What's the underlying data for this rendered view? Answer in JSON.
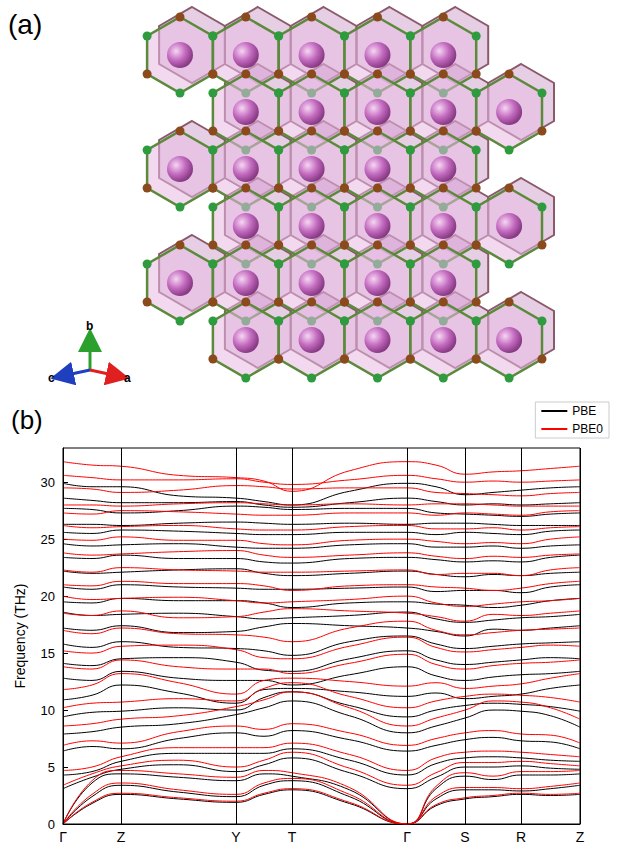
{
  "figure_a": {
    "label": "(a)",
    "axes": [
      {
        "label": "b",
        "color": "#2ca02c"
      },
      {
        "label": "c",
        "color": "#1f3fbf"
      },
      {
        "label": "a",
        "color": "#e02020"
      }
    ]
  },
  "chart_data": {
    "type": "line",
    "title": "(b)",
    "ylabel": "Frequency (THz)",
    "x": [
      0,
      0.29,
      0.58,
      1.155,
      1.73,
      2.01,
      2.29,
      2.865,
      3.44,
      3.73,
      4.02,
      4.3,
      4.58,
      4.875,
      5.17
    ],
    "xlim": [
      0,
      5.17
    ],
    "xticks": [
      {
        "value": 0,
        "label": "Γ"
      },
      {
        "value": 0.58,
        "label": "Z"
      },
      {
        "value": 1.73,
        "label": "Y"
      },
      {
        "value": 2.29,
        "label": "T"
      },
      {
        "value": 3.44,
        "label": "Γ"
      },
      {
        "value": 4.02,
        "label": "S"
      },
      {
        "value": 4.58,
        "label": "R"
      },
      {
        "value": 5.17,
        "label": "Z"
      }
    ],
    "ylim": [
      0,
      33
    ],
    "yticks": [
      0,
      5,
      10,
      15,
      20,
      25,
      30
    ],
    "grid": true,
    "legend": "top-right",
    "series": [
      {
        "name": "PBE",
        "color": "#000000",
        "values": [
          [
            0,
            1.8,
            2.6,
            2.2,
            1.9,
            2.6,
            3.0,
            1.8,
            0,
            1.6,
            2.2,
            2.4,
            2.6,
            2.5,
            2.6
          ],
          [
            0,
            2.4,
            3.4,
            2.8,
            2.4,
            3.4,
            3.8,
            2.4,
            0,
            2.2,
            3.0,
            3.0,
            2.9,
            3.1,
            3.4
          ],
          [
            0,
            3.6,
            4.4,
            4.1,
            3.8,
            4.4,
            4.2,
            3.0,
            0,
            3.1,
            4.2,
            3.9,
            4.3,
            4.3,
            4.4
          ],
          [
            3.1,
            4.1,
            4.8,
            5.2,
            4.6,
            5.2,
            5.8,
            4.5,
            3.1,
            4.1,
            5.0,
            5.0,
            5.1,
            4.9,
            4.8
          ],
          [
            4.3,
            4.6,
            5.5,
            6.2,
            6.2,
            6.2,
            6.6,
            5.6,
            4.3,
            5.3,
            5.8,
            5.9,
            5.8,
            5.6,
            5.5
          ],
          [
            6.4,
            6.8,
            6.6,
            7.5,
            8.0,
            7.7,
            8.2,
            7.4,
            6.4,
            6.9,
            7.4,
            7.6,
            7.3,
            7.2,
            6.6
          ],
          [
            7.9,
            8.1,
            8.5,
            8.8,
            9.6,
            10.2,
            10.8,
            9.5,
            8.0,
            8.6,
            9.3,
            10.0,
            9.9,
            9.5,
            8.5
          ],
          [
            9.4,
            9.8,
            9.9,
            10.2,
            10.0,
            11.1,
            11.6,
            10.4,
            9.4,
            10.0,
            10.4,
            10.6,
            10.5,
            10.3,
            9.9
          ],
          [
            10.9,
            11.3,
            12.2,
            11.5,
            10.6,
            11.8,
            11.9,
            11.6,
            11.2,
            11.5,
            11.0,
            11.2,
            11.4,
            11.9,
            12.2
          ],
          [
            12.8,
            12.6,
            13.4,
            12.8,
            12.6,
            12.6,
            12.2,
            13.1,
            13.8,
            13.0,
            12.6,
            12.9,
            13.1,
            13.2,
            13.4
          ],
          [
            14.1,
            13.9,
            14.5,
            14.6,
            14.2,
            13.5,
            13.4,
            14.5,
            15.2,
            14.4,
            14.0,
            14.2,
            14.4,
            14.6,
            14.5
          ],
          [
            15.8,
            15.5,
            16.0,
            15.5,
            15.4,
            15.2,
            14.8,
            16.0,
            16.5,
            15.8,
            15.4,
            15.6,
            15.8,
            15.9,
            16.0
          ],
          [
            17.2,
            17.0,
            17.4,
            16.8,
            16.9,
            17.3,
            17.6,
            17.4,
            17.2,
            16.9,
            16.5,
            17.1,
            17.0,
            17.2,
            17.4
          ],
          [
            18.6,
            18.3,
            18.4,
            18.5,
            18.2,
            18.0,
            18.1,
            18.3,
            18.6,
            18.0,
            17.7,
            17.9,
            18.1,
            18.2,
            18.4
          ],
          [
            19.5,
            19.4,
            19.8,
            19.6,
            19.6,
            19.4,
            19.0,
            19.4,
            19.5,
            19.3,
            19.2,
            19.0,
            19.2,
            19.6,
            19.8
          ],
          [
            20.8,
            20.6,
            21.0,
            20.8,
            20.7,
            20.6,
            20.6,
            20.7,
            20.8,
            20.4,
            20.5,
            20.5,
            20.3,
            20.8,
            21.0
          ],
          [
            22.2,
            22.0,
            22.1,
            22.3,
            22.4,
            22.0,
            21.8,
            22.0,
            22.2,
            21.9,
            21.7,
            21.9,
            21.8,
            22.0,
            22.1
          ],
          [
            23.4,
            23.3,
            23.6,
            23.3,
            23.3,
            23.0,
            22.9,
            23.3,
            23.4,
            23.2,
            23.0,
            23.1,
            23.0,
            23.4,
            23.6
          ],
          [
            24.6,
            24.4,
            24.5,
            24.6,
            24.3,
            24.2,
            24.2,
            24.5,
            24.6,
            24.3,
            24.3,
            24.4,
            24.2,
            24.4,
            24.5
          ],
          [
            25.6,
            25.5,
            25.8,
            25.7,
            25.5,
            25.4,
            25.4,
            25.6,
            25.6,
            25.4,
            25.6,
            25.5,
            25.4,
            25.7,
            25.8
          ],
          [
            26.3,
            26.3,
            26.2,
            26.4,
            26.5,
            26.4,
            26.3,
            26.4,
            26.3,
            26.4,
            26.4,
            26.3,
            26.2,
            26.2,
            26.2
          ],
          [
            27.7,
            27.6,
            27.3,
            27.5,
            27.9,
            27.8,
            27.6,
            27.7,
            27.7,
            27.3,
            27.2,
            27.1,
            27.0,
            27.2,
            27.3
          ],
          [
            28.6,
            28.4,
            28.2,
            28.2,
            28.3,
            28.0,
            27.8,
            28.2,
            28.6,
            28.3,
            28.0,
            28.1,
            28.0,
            28.1,
            28.2
          ],
          [
            29.9,
            29.6,
            29.6,
            28.8,
            28.6,
            28.3,
            28.0,
            29.2,
            29.9,
            29.6,
            28.9,
            29.1,
            29.3,
            29.5,
            29.6
          ]
        ]
      },
      {
        "name": "PBE0",
        "color": "#ff0000",
        "values": [
          [
            0,
            1.9,
            2.7,
            2.3,
            2.0,
            2.7,
            3.1,
            1.9,
            0,
            1.7,
            2.3,
            2.5,
            2.7,
            2.6,
            2.7
          ],
          [
            0,
            2.6,
            3.6,
            3.0,
            2.6,
            3.6,
            4.0,
            2.6,
            0,
            2.4,
            3.2,
            3.2,
            3.1,
            3.3,
            3.6
          ],
          [
            0,
            3.8,
            4.7,
            4.4,
            4.1,
            4.7,
            4.5,
            3.2,
            0,
            3.3,
            4.5,
            4.2,
            4.6,
            4.6,
            4.7
          ],
          [
            3.4,
            4.4,
            5.1,
            5.6,
            5.0,
            5.6,
            6.3,
            4.9,
            3.4,
            4.5,
            5.4,
            5.4,
            5.5,
            5.3,
            5.1
          ],
          [
            4.7,
            5.0,
            5.9,
            6.7,
            6.7,
            6.7,
            7.1,
            6.1,
            4.7,
            5.8,
            6.3,
            6.4,
            6.3,
            6.1,
            5.9
          ],
          [
            6.9,
            7.3,
            7.1,
            8.1,
            8.6,
            8.3,
            8.8,
            8.0,
            6.9,
            7.5,
            8.0,
            8.2,
            7.9,
            7.8,
            7.1
          ],
          [
            8.6,
            8.8,
            9.2,
            9.5,
            10.3,
            10.9,
            11.6,
            10.2,
            8.6,
            9.3,
            10.0,
            10.8,
            10.7,
            10.2,
            9.2
          ],
          [
            10.2,
            10.6,
            10.7,
            11.0,
            10.8,
            11.9,
            12.4,
            11.2,
            10.2,
            10.8,
            11.2,
            11.4,
            11.3,
            11.1,
            10.7
          ],
          [
            11.8,
            12.2,
            13.2,
            12.4,
            11.4,
            12.6,
            12.8,
            12.5,
            12.1,
            12.4,
            11.9,
            12.1,
            12.3,
            12.8,
            13.2
          ],
          [
            13.8,
            13.6,
            14.4,
            13.8,
            13.6,
            13.6,
            13.2,
            14.1,
            14.9,
            14.0,
            13.6,
            13.9,
            14.1,
            14.2,
            14.4
          ],
          [
            15.2,
            15.0,
            15.6,
            15.7,
            15.3,
            14.6,
            14.5,
            15.6,
            16.4,
            15.5,
            15.1,
            15.3,
            15.5,
            15.7,
            15.6
          ],
          [
            17.0,
            16.7,
            17.2,
            16.7,
            16.6,
            16.4,
            16.0,
            17.2,
            17.8,
            17.0,
            16.6,
            16.8,
            17.0,
            17.1,
            17.2
          ],
          [
            18.5,
            18.3,
            18.7,
            18.1,
            18.2,
            18.6,
            18.9,
            18.7,
            18.5,
            18.2,
            17.8,
            18.4,
            18.3,
            18.5,
            18.7
          ],
          [
            20.0,
            19.7,
            19.8,
            19.9,
            19.6,
            19.4,
            19.5,
            19.7,
            20.0,
            19.4,
            19.1,
            19.3,
            19.5,
            19.6,
            19.8
          ],
          [
            21.0,
            20.9,
            21.3,
            21.1,
            21.1,
            20.9,
            20.5,
            20.9,
            21.0,
            20.8,
            20.7,
            20.5,
            20.7,
            21.1,
            21.3
          ],
          [
            22.3,
            22.1,
            22.5,
            22.3,
            22.2,
            22.1,
            22.1,
            22.2,
            22.3,
            21.9,
            22.0,
            22.0,
            21.8,
            22.3,
            22.5
          ],
          [
            23.8,
            23.6,
            23.7,
            23.9,
            24.0,
            23.6,
            23.4,
            23.6,
            23.8,
            23.5,
            23.3,
            23.5,
            23.4,
            23.6,
            23.7
          ],
          [
            25.0,
            24.9,
            25.2,
            24.9,
            24.9,
            24.6,
            24.5,
            24.9,
            25.0,
            24.8,
            24.6,
            24.7,
            24.6,
            25.0,
            25.2
          ],
          [
            26.2,
            26.0,
            26.1,
            26.2,
            25.9,
            25.8,
            25.8,
            26.1,
            26.2,
            25.9,
            25.9,
            26.0,
            25.8,
            26.0,
            26.1
          ],
          [
            27.3,
            27.2,
            27.5,
            27.4,
            27.2,
            27.1,
            27.1,
            27.3,
            27.3,
            27.1,
            27.3,
            27.2,
            27.1,
            27.4,
            27.5
          ],
          [
            28.0,
            28.0,
            27.9,
            28.1,
            28.2,
            28.1,
            28.0,
            28.1,
            28.0,
            28.1,
            28.1,
            28.0,
            27.9,
            27.9,
            27.9
          ],
          [
            29.5,
            29.4,
            29.1,
            29.3,
            29.7,
            29.6,
            29.4,
            29.5,
            29.5,
            29.1,
            29.0,
            28.9,
            28.8,
            29.0,
            29.1
          ],
          [
            30.6,
            30.4,
            30.2,
            30.2,
            30.3,
            30.0,
            29.8,
            30.2,
            30.6,
            30.3,
            30.0,
            30.1,
            30.0,
            30.1,
            30.2
          ],
          [
            31.8,
            31.5,
            31.4,
            30.6,
            30.4,
            30.1,
            29.2,
            31.0,
            31.8,
            31.5,
            30.7,
            30.9,
            31.0,
            31.2,
            31.4
          ]
        ]
      }
    ]
  }
}
